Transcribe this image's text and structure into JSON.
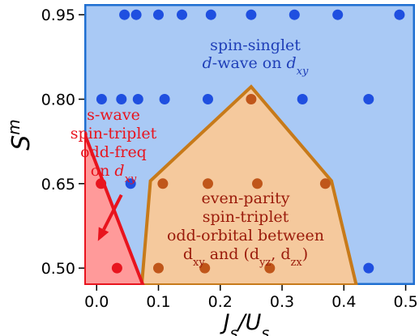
{
  "chart_data": {
    "type": "scatter",
    "xlabel": "J_s/U_s",
    "ylabel": "S^m",
    "xlim": [
      -0.02,
      0.515
    ],
    "ylim": [
      0.47,
      0.969
    ],
    "x_ticks": [
      "0.0",
      "0.1",
      "0.2",
      "0.3",
      "0.4",
      "0.5"
    ],
    "x_tick_values": [
      0.0,
      0.1,
      0.2,
      0.3,
      0.4,
      0.5
    ],
    "y_ticks": [
      "0.50",
      "0.65",
      "0.80",
      "0.95"
    ],
    "y_tick_values": [
      0.5,
      0.65,
      0.8,
      0.95
    ],
    "grid": false,
    "regions": [
      {
        "id": "singlet",
        "label_lines": [
          "spin-singlet",
          "d-wave on d_xy"
        ],
        "fill": "#a9c9f5",
        "stroke": "#1f6fd1",
        "text_color": "#1f3fb8",
        "polygon": [
          [
            -0.02,
            0.969
          ],
          [
            0.515,
            0.969
          ],
          [
            0.515,
            0.47
          ],
          [
            -0.02,
            0.47
          ]
        ]
      },
      {
        "id": "triplet_even_parity",
        "label_lines": [
          "even-parity",
          "spin-triplet",
          "odd-orbital between",
          "d_xy and (d_yz, d_zx)"
        ],
        "fill": "#f5c99d",
        "stroke": "#c77a1a",
        "text_color": "#9a1a0a",
        "polygon": [
          [
            0.073,
            0.47
          ],
          [
            0.087,
            0.655
          ],
          [
            0.25,
            0.822
          ],
          [
            0.38,
            0.655
          ],
          [
            0.42,
            0.47
          ]
        ]
      },
      {
        "id": "s_wave_odd_freq",
        "label_lines": [
          "s-wave",
          "spin-triplet",
          "odd-freq",
          "on d_xy"
        ],
        "fill": "#ff9a9a",
        "stroke": "#e8141e",
        "text_color": "#e8141e",
        "polygon": [
          [
            -0.02,
            0.74
          ],
          [
            -0.02,
            0.47
          ],
          [
            0.075,
            0.47
          ]
        ]
      }
    ],
    "series": [
      {
        "region": "singlet",
        "color": "#1f4fe0",
        "points": [
          [
            0.045,
            0.95
          ],
          [
            0.064,
            0.95
          ],
          [
            0.1,
            0.95
          ],
          [
            0.138,
            0.95
          ],
          [
            0.185,
            0.95
          ],
          [
            0.25,
            0.95
          ],
          [
            0.32,
            0.95
          ],
          [
            0.39,
            0.95
          ],
          [
            0.49,
            0.95
          ],
          [
            0.008,
            0.8
          ],
          [
            0.04,
            0.8
          ],
          [
            0.067,
            0.8
          ],
          [
            0.11,
            0.8
          ],
          [
            0.18,
            0.8
          ],
          [
            0.333,
            0.8
          ],
          [
            0.44,
            0.8
          ],
          [
            0.055,
            0.65
          ],
          [
            0.44,
            0.5
          ]
        ]
      },
      {
        "region": "triplet_even_parity",
        "color": "#c0561a",
        "points": [
          [
            0.25,
            0.8
          ],
          [
            0.107,
            0.65
          ],
          [
            0.18,
            0.65
          ],
          [
            0.26,
            0.65
          ],
          [
            0.37,
            0.65
          ],
          [
            0.1,
            0.5
          ],
          [
            0.175,
            0.5
          ],
          [
            0.28,
            0.5
          ]
        ]
      },
      {
        "region": "s_wave_odd_freq",
        "color": "#e8141e",
        "points": [
          [
            0.007,
            0.65
          ],
          [
            0.033,
            0.5
          ]
        ]
      }
    ],
    "annotation_arrow": {
      "color": "#e8141e",
      "from": [
        0.04,
        0.63
      ],
      "to": [
        0.002,
        0.548
      ]
    }
  }
}
